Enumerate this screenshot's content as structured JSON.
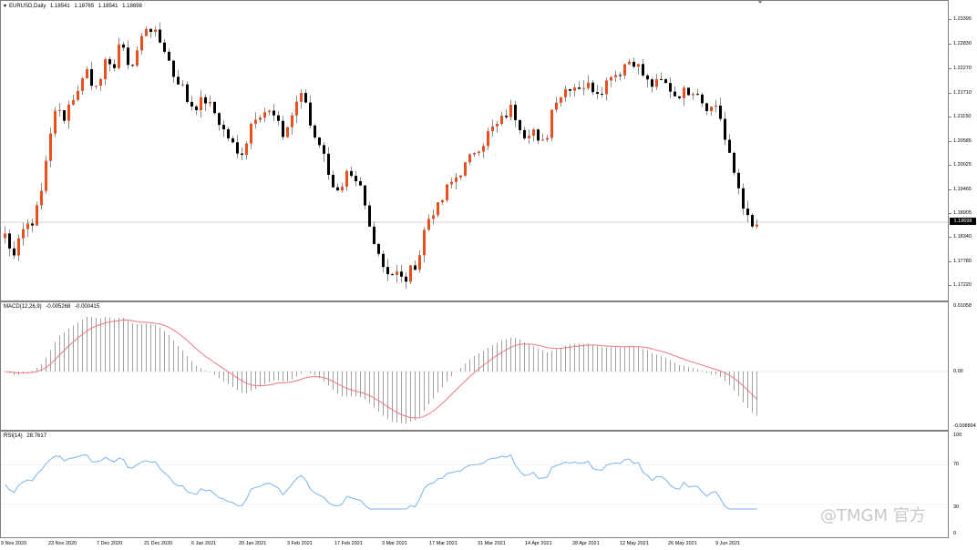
{
  "main": {
    "symbol": "EURUSD,Daily",
    "open": "1.18541",
    "high": "1.18765",
    "low": "1.18541",
    "close": "1.18698",
    "price_ticks": [
      "1.23395",
      "1.22830",
      "1.22270",
      "1.21710",
      "1.21150",
      "1.20585",
      "1.20025",
      "1.19465",
      "1.18905",
      "1.18340",
      "1.17780",
      "1.17220"
    ],
    "current_price": "1.18698"
  },
  "macd": {
    "label": "MACD(12,26,9)",
    "main_value": "-0.005268",
    "signal_value": "-0.000415",
    "ticks": [
      "0.01058",
      "0.00",
      "-0.008894"
    ]
  },
  "rsi": {
    "label": "RSI(14)",
    "value": "28.7617",
    "ticks": [
      "100",
      "70",
      "30",
      "0"
    ]
  },
  "time_axis": {
    "dates": [
      "9 Nov 2020",
      "23 Nov 2020",
      "7 Dec 2020",
      "21 Dec 2020",
      "6 Jan 2021",
      "20 Jan 2021",
      "3 Feb 2021",
      "17 Feb 2021",
      "3 Mar 2021",
      "17 Mar 2021",
      "31 Mar 2021",
      "14 Apr 2021",
      "28 Apr 2021",
      "12 May 2021",
      "26 May 2021",
      "9 Jun 2021"
    ]
  },
  "colors": {
    "bull": "#e8501e",
    "bear": "#000000",
    "macd_histogram": "#a0a0a0",
    "macd_signal": "#f07882",
    "rsi_line": "#7ab4f0",
    "grid_line": "#c0c0c0"
  },
  "chart_data": {
    "type": "candlestick",
    "x": [
      "Nov 2020",
      "Dec 2020",
      "Jan 2021",
      "Feb 2021",
      "Mar 2021",
      "Apr 2021",
      "May 2021",
      "Jun 2021"
    ],
    "close_approx": [
      1.183,
      1.2215,
      1.217,
      1.2115,
      1.173,
      1.202,
      1.223,
      1.187
    ],
    "ylim": [
      1.17,
      1.237
    ]
  },
  "watermark": "@TMGM 官方"
}
